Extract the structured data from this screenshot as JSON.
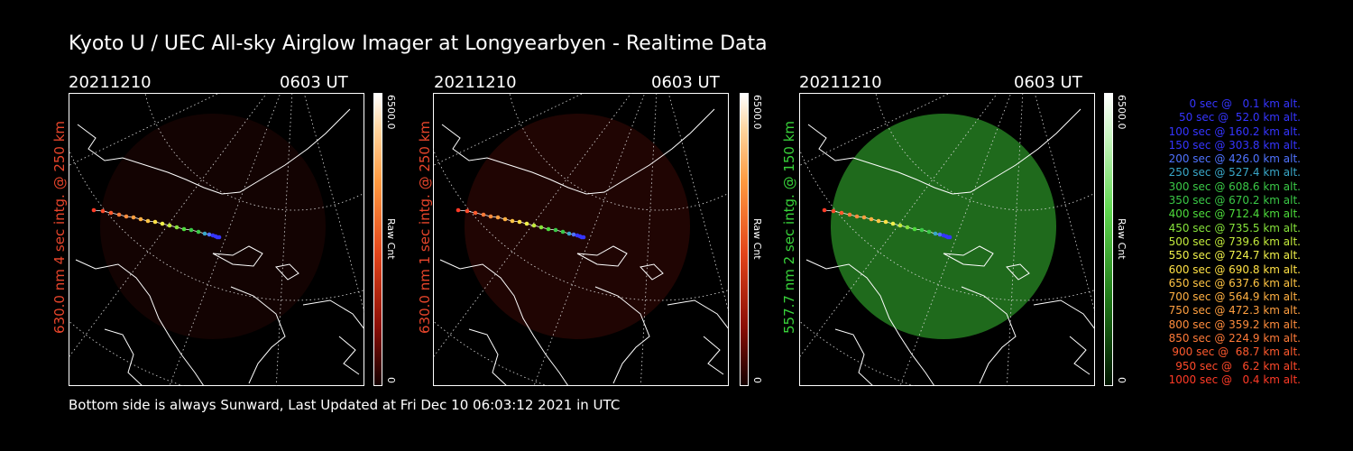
{
  "header": {
    "title": "Kyoto U / UEC All-sky Airglow Imager at Longyearbyen - Realtime Data"
  },
  "footer": {
    "text": "Bottom side is always Sunward, Last Updated at Fri Dec 10 06:03:12 2021 in UTC"
  },
  "panels": [
    {
      "date": "20211210",
      "time": "0603 UT",
      "label": "630.0 nm 4 sec intg. @ 250 km",
      "label_color": "#e8452b",
      "scale_max": "6500.0",
      "scale_min": "0",
      "scale_unit": "Raw Cnt",
      "palette": "red",
      "glow_level": 0.15
    },
    {
      "date": "20211210",
      "time": "0603 UT",
      "label": "630.0 nm 1 sec intg. @ 250 km",
      "label_color": "#e8452b",
      "scale_max": "6500.0",
      "scale_min": "0",
      "scale_unit": "Raw Cnt",
      "palette": "red",
      "glow_level": 0.25
    },
    {
      "date": "20211210",
      "time": "0603 UT",
      "label": "557.7 nm 2 sec intg. @ 150 km",
      "label_color": "#38d23a",
      "scale_max": "6500.0",
      "scale_min": "0",
      "scale_unit": "Raw Cnt",
      "palette": "green",
      "glow_level": 0.45
    }
  ],
  "legend": {
    "items": [
      {
        "text": "0 sec @   0.1 km alt.",
        "color": "#3535ff"
      },
      {
        "text": "50 sec @  52.0 km alt.",
        "color": "#3535ff"
      },
      {
        "text": "100 sec @ 160.2 km alt.",
        "color": "#3535ff"
      },
      {
        "text": "150 sec @ 303.8 km alt.",
        "color": "#3535ff"
      },
      {
        "text": "200 sec @ 426.0 km alt.",
        "color": "#4f73ff"
      },
      {
        "text": "250 sec @ 527.4 km alt.",
        "color": "#39a7c8"
      },
      {
        "text": "300 sec @ 608.6 km alt.",
        "color": "#3ac846"
      },
      {
        "text": "350 sec @ 670.2 km alt.",
        "color": "#3ac846"
      },
      {
        "text": "400 sec @ 712.4 km alt.",
        "color": "#4ddb3b"
      },
      {
        "text": "450 sec @ 735.5 km alt.",
        "color": "#85e23a"
      },
      {
        "text": "500 sec @ 739.6 km alt.",
        "color": "#c3ea3c"
      },
      {
        "text": "550 sec @ 724.7 km alt.",
        "color": "#f0f04a"
      },
      {
        "text": "600 sec @ 690.8 km alt.",
        "color": "#ffe045"
      },
      {
        "text": "650 sec @ 637.6 km alt.",
        "color": "#ffc443"
      },
      {
        "text": "700 sec @ 564.9 km alt.",
        "color": "#ffb042"
      },
      {
        "text": "750 sec @ 472.3 km alt.",
        "color": "#ff9f40"
      },
      {
        "text": "800 sec @ 359.2 km alt.",
        "color": "#ff8c3c"
      },
      {
        "text": "850 sec @ 224.9 km alt.",
        "color": "#ff7a38"
      },
      {
        "text": "900 sec @  68.7 km alt.",
        "color": "#ff5a2e"
      },
      {
        "text": "950 sec @   6.2 km alt.",
        "color": "#ff4a2a"
      },
      {
        "text": "1000 sec @   0.4 km alt.",
        "color": "#ff3a26"
      }
    ]
  }
}
